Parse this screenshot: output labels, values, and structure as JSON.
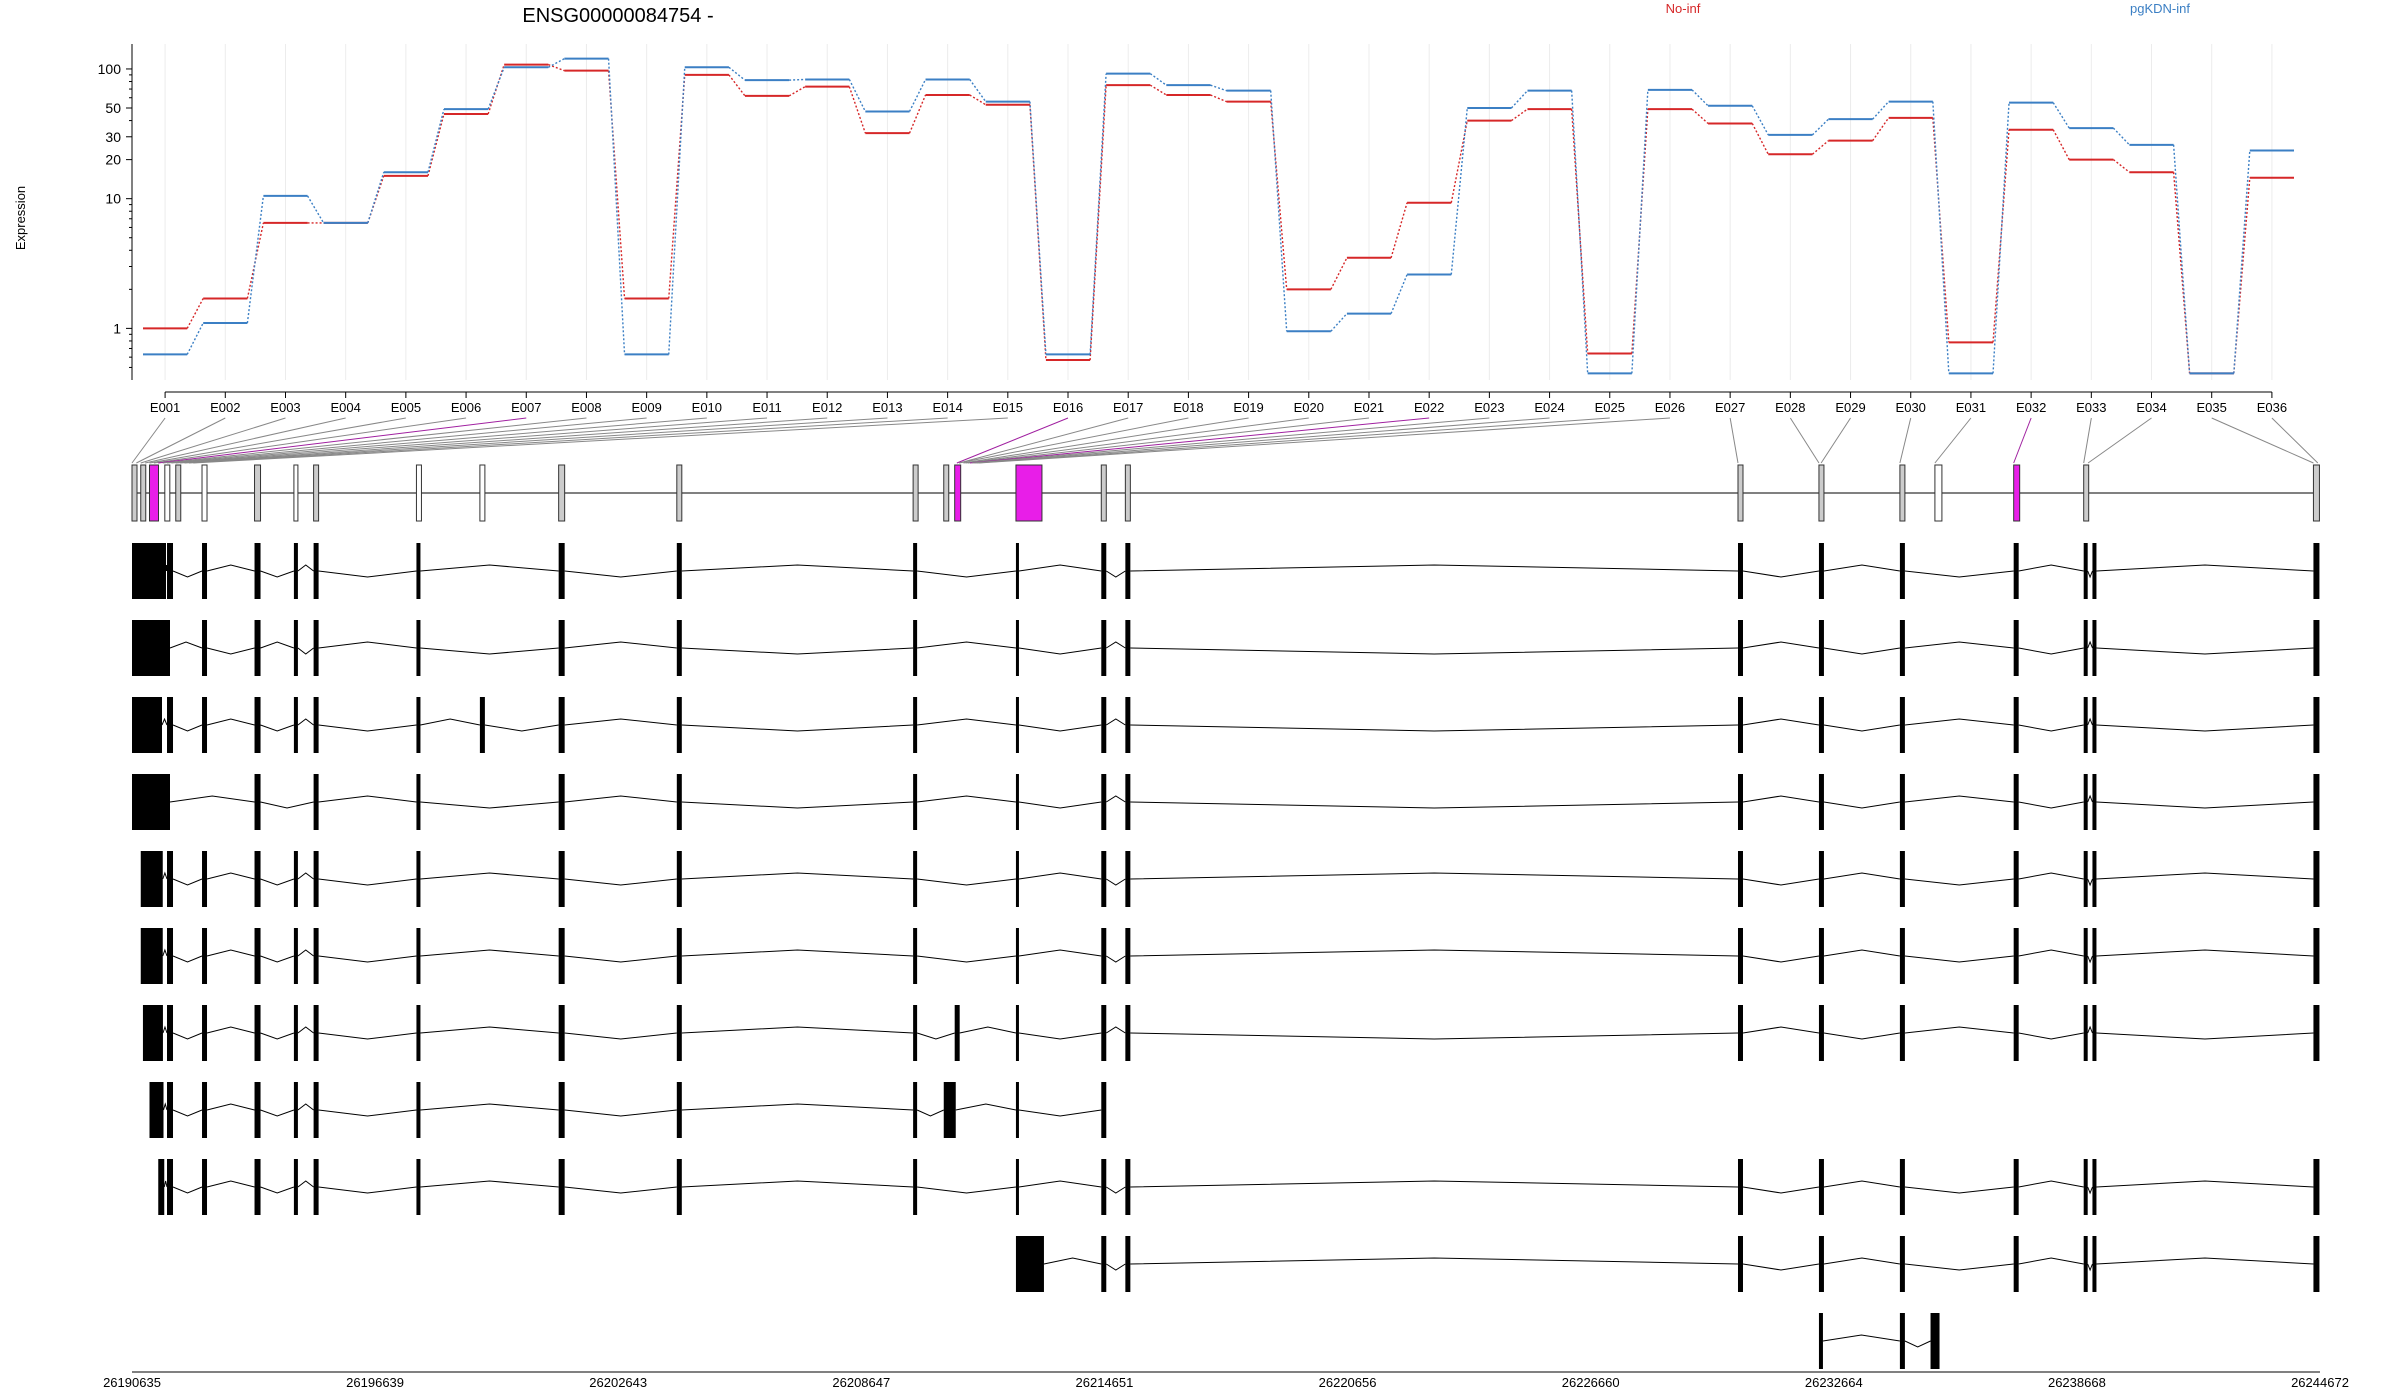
{
  "chart_data": {
    "type": "line",
    "title": "ENSG00000084754 -",
    "ylabel": "Expression",
    "y_scale": "log",
    "y_ticks": [
      1,
      10,
      20,
      30,
      50,
      100
    ],
    "y_tick_labels": [
      "1",
      "10",
      "20",
      "30",
      "50",
      "100"
    ],
    "ylim": [
      0.4,
      140
    ],
    "grid": true,
    "legend_position": "top-right",
    "categories": [
      "E001",
      "E002",
      "E003",
      "E004",
      "E005",
      "E006",
      "E007",
      "E008",
      "E009",
      "E010",
      "E011",
      "E012",
      "E013",
      "E014",
      "E015",
      "E016",
      "E017",
      "E018",
      "E019",
      "E020",
      "E021",
      "E022",
      "E023",
      "E024",
      "E025",
      "E026",
      "E027",
      "E028",
      "E029",
      "E030",
      "E031",
      "E032",
      "E033",
      "E034",
      "E035",
      "E036"
    ],
    "series": [
      {
        "name": "No-inf",
        "color": "#d62728",
        "values": [
          1.0,
          1.7,
          6.5,
          6.5,
          15,
          45,
          108,
          97,
          1.7,
          90,
          62,
          73,
          32,
          63,
          53,
          0.57,
          75,
          63,
          56,
          2.0,
          3.5,
          9.3,
          40,
          49,
          0.64,
          49,
          38,
          22,
          28,
          42,
          0.78,
          34,
          20,
          16,
          0.45,
          14.5
        ]
      },
      {
        "name": "pgKDN-inf",
        "color": "#3b7fc4",
        "values": [
          0.63,
          1.1,
          10.5,
          6.5,
          16,
          49,
          103,
          120,
          0.63,
          103,
          82,
          83,
          47,
          83,
          56,
          0.63,
          92,
          75,
          68,
          0.95,
          1.3,
          2.6,
          50,
          68,
          0.45,
          69,
          52,
          31,
          41,
          56,
          0.45,
          55,
          35,
          26,
          0.45,
          23.5
        ]
      }
    ],
    "genome_axis": {
      "ticks": [
        "26190635",
        "26196639",
        "26202643",
        "26208647",
        "26214651",
        "26220656",
        "26226660",
        "26232664",
        "26238668",
        "26244672"
      ],
      "start": 26190635,
      "end": 26244672
    },
    "highlight_color": "#e81ee8"
  }
}
